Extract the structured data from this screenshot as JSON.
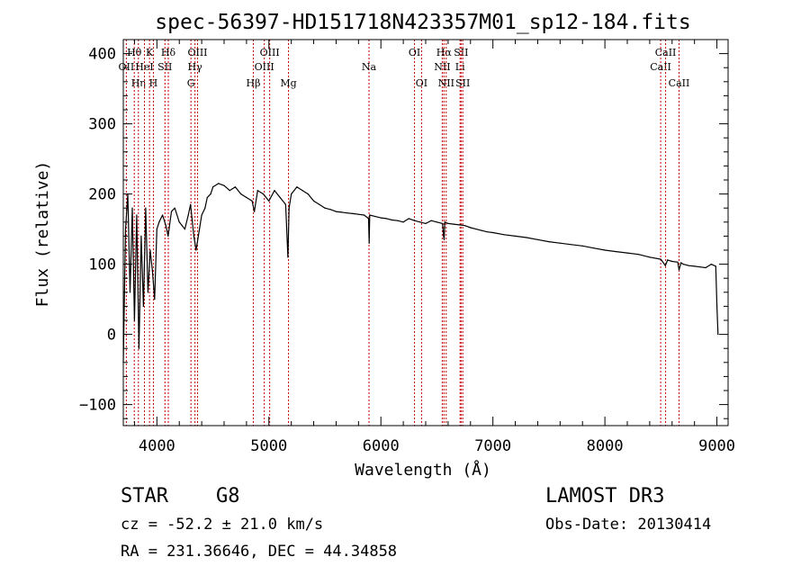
{
  "chart_data": {
    "type": "line",
    "title": "spec-56397-HD151718N423357M01_sp12-184.fits",
    "xlabel": "Wavelength (Å)",
    "ylabel": "Flux (relative)",
    "xlim": [
      3700,
      9100
    ],
    "ylim": [
      -130,
      420
    ],
    "x_ticks": [
      4000,
      5000,
      6000,
      7000,
      8000,
      9000
    ],
    "y_ticks": [
      -100,
      0,
      100,
      200,
      300,
      400
    ],
    "grid": false,
    "series": [
      {
        "name": "flux",
        "x": [
          3700,
          3720,
          3740,
          3760,
          3780,
          3800,
          3820,
          3840,
          3860,
          3880,
          3900,
          3920,
          3940,
          3960,
          3980,
          4000,
          4020,
          4050,
          4080,
          4100,
          4130,
          4160,
          4200,
          4250,
          4280,
          4300,
          4330,
          4350,
          4380,
          4400,
          4430,
          4450,
          4480,
          4500,
          4550,
          4600,
          4650,
          4700,
          4750,
          4800,
          4850,
          4870,
          4900,
          4950,
          5000,
          5050,
          5100,
          5150,
          5170,
          5180,
          5200,
          5250,
          5300,
          5350,
          5400,
          5450,
          5500,
          5550,
          5600,
          5650,
          5700,
          5750,
          5800,
          5850,
          5890,
          5895,
          5900,
          5950,
          6000,
          6050,
          6100,
          6150,
          6200,
          6250,
          6300,
          6350,
          6400,
          6450,
          6500,
          6550,
          6560,
          6565,
          6570,
          6600,
          6650,
          6700,
          6750,
          6800,
          6850,
          6900,
          6950,
          7000,
          7100,
          7200,
          7300,
          7400,
          7500,
          7600,
          7700,
          7800,
          7900,
          8000,
          8100,
          8200,
          8300,
          8400,
          8500,
          8540,
          8560,
          8600,
          8650,
          8662,
          8680,
          8700,
          8750,
          8800,
          8850,
          8900,
          8950,
          8990,
          9000,
          9010
        ],
        "y": [
          -40,
          150,
          200,
          60,
          180,
          20,
          170,
          -20,
          140,
          40,
          180,
          60,
          120,
          90,
          50,
          150,
          160,
          170,
          155,
          140,
          175,
          180,
          160,
          150,
          170,
          185,
          140,
          120,
          150,
          170,
          180,
          195,
          200,
          210,
          215,
          212,
          205,
          210,
          200,
          195,
          190,
          175,
          205,
          200,
          190,
          205,
          195,
          185,
          110,
          180,
          200,
          210,
          205,
          200,
          190,
          185,
          180,
          178,
          175,
          174,
          173,
          172,
          171,
          170,
          165,
          130,
          170,
          168,
          166,
          165,
          163,
          162,
          160,
          165,
          162,
          160,
          158,
          162,
          160,
          158,
          140,
          135,
          160,
          158,
          157,
          156,
          155,
          152,
          150,
          148,
          146,
          145,
          142,
          140,
          138,
          135,
          132,
          130,
          128,
          126,
          123,
          120,
          118,
          116,
          114,
          110,
          107,
          98,
          106,
          104,
          103,
          92,
          102,
          100,
          98,
          97,
          96,
          95,
          100,
          97,
          40,
          0
        ]
      }
    ],
    "line_markers": [
      {
        "label": "OII",
        "wavelength": 3727,
        "row": 2
      },
      {
        "label": "Hθ",
        "wavelength": 3798,
        "row": 1
      },
      {
        "label": "Hη",
        "wavelength": 3835,
        "row": 3
      },
      {
        "label": "HeI",
        "wavelength": 3889,
        "row": 2
      },
      {
        "label": "K",
        "wavelength": 3934,
        "row": 1
      },
      {
        "label": "H",
        "wavelength": 3969,
        "row": 3
      },
      {
        "label": "SII",
        "wavelength": 4072,
        "row": 2
      },
      {
        "label": "Hδ",
        "wavelength": 4102,
        "row": 1
      },
      {
        "label": "G",
        "wavelength": 4304,
        "row": 3
      },
      {
        "label": "Hγ",
        "wavelength": 4340,
        "row": 2
      },
      {
        "label": "OIII",
        "wavelength": 4363,
        "row": 1
      },
      {
        "label": "Hβ",
        "wavelength": 4861,
        "row": 3
      },
      {
        "label": "OIII",
        "wavelength": 4959,
        "row": 2
      },
      {
        "label": "OIII",
        "wavelength": 5007,
        "row": 1
      },
      {
        "label": "Mg",
        "wavelength": 5175,
        "row": 3
      },
      {
        "label": "Na",
        "wavelength": 5894,
        "row": 2
      },
      {
        "label": "OI",
        "wavelength": 6300,
        "row": 1
      },
      {
        "label": "OI",
        "wavelength": 6363,
        "row": 3
      },
      {
        "label": "NII",
        "wavelength": 6548,
        "row": 2
      },
      {
        "label": "Hα",
        "wavelength": 6563,
        "row": 1
      },
      {
        "label": "NII",
        "wavelength": 6583,
        "row": 3
      },
      {
        "label": "Li",
        "wavelength": 6707,
        "row": 2
      },
      {
        "label": "SII",
        "wavelength": 6716,
        "row": 1
      },
      {
        "label": "SII",
        "wavelength": 6731,
        "row": 3
      },
      {
        "label": "CaII",
        "wavelength": 8498,
        "row": 2
      },
      {
        "label": "CaII",
        "wavelength": 8542,
        "row": 1
      },
      {
        "label": "CaII",
        "wavelength": 8662,
        "row": 3
      }
    ]
  },
  "info": {
    "object_class": "STAR",
    "subclass": "G8",
    "survey": "LAMOST DR3",
    "redshift": "cz = -52.2 ± 21.0 km/s",
    "obs_date": "Obs-Date: 20130414",
    "coordinates": "RA = 231.36646, DEC =  44.34858"
  },
  "colors": {
    "spectrum": "#000000",
    "marker_line": "#c00000"
  }
}
